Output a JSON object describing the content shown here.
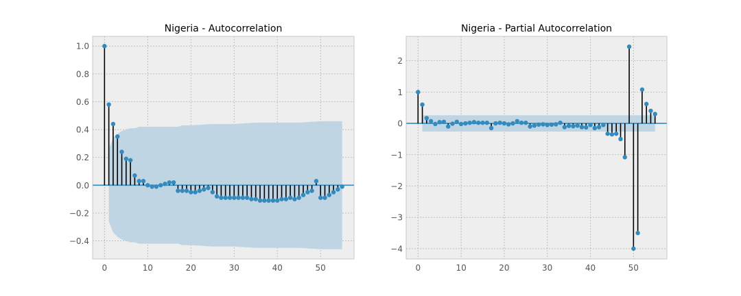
{
  "chart_data": [
    {
      "type": "stem",
      "title": "Nigeria - Autocorrelation",
      "xlabel": "",
      "ylabel": "",
      "xlim": [
        -2.75,
        57.75
      ],
      "ylim": [
        -0.53,
        1.07
      ],
      "xticks": [
        0,
        10,
        20,
        30,
        40,
        50
      ],
      "xtick_labels": [
        "0",
        "10",
        "20",
        "30",
        "40",
        "50"
      ],
      "yticks": [
        -0.4,
        -0.2,
        0.0,
        0.2,
        0.4,
        0.6,
        0.8,
        1.0
      ],
      "ytick_labels": [
        "−0.4",
        "−0.2",
        "0.0",
        "0.2",
        "0.4",
        "0.6",
        "0.8",
        "1.0"
      ],
      "grid": true,
      "colors": {
        "marker": "#348abd",
        "stem": "#000000",
        "baseline": "#348abd",
        "band": "#bcd3e2",
        "axes_bg": "#eeeeee",
        "grid": "#b2b2b2"
      },
      "x": [
        0,
        1,
        2,
        3,
        4,
        5,
        6,
        7,
        8,
        9,
        10,
        11,
        12,
        13,
        14,
        15,
        16,
        17,
        18,
        19,
        20,
        21,
        22,
        23,
        24,
        25,
        26,
        27,
        28,
        29,
        30,
        31,
        32,
        33,
        34,
        35,
        36,
        37,
        38,
        39,
        40,
        41,
        42,
        43,
        44,
        45,
        46,
        47,
        48,
        49,
        50,
        51,
        52,
        53,
        54,
        55
      ],
      "values": [
        1.0,
        0.58,
        0.44,
        0.35,
        0.24,
        0.19,
        0.18,
        0.07,
        0.03,
        0.03,
        0.0,
        -0.01,
        -0.01,
        0.0,
        0.01,
        0.02,
        0.02,
        -0.04,
        -0.04,
        -0.04,
        -0.05,
        -0.05,
        -0.04,
        -0.03,
        -0.02,
        -0.05,
        -0.08,
        -0.09,
        -0.09,
        -0.09,
        -0.09,
        -0.09,
        -0.09,
        -0.09,
        -0.1,
        -0.1,
        -0.11,
        -0.11,
        -0.11,
        -0.11,
        -0.11,
        -0.1,
        -0.1,
        -0.09,
        -0.1,
        -0.09,
        -0.07,
        -0.05,
        -0.04,
        0.03,
        -0.09,
        -0.09,
        -0.07,
        -0.05,
        -0.03,
        -0.01
      ],
      "confidence_band": {
        "x": [
          1,
          2,
          3,
          4,
          5,
          6,
          7,
          8,
          9,
          10,
          11,
          12,
          13,
          14,
          15,
          16,
          17,
          18,
          19,
          20,
          25,
          30,
          35,
          40,
          45,
          50,
          55
        ],
        "upper": [
          0.26,
          0.34,
          0.37,
          0.39,
          0.4,
          0.41,
          0.41,
          0.42,
          0.42,
          0.42,
          0.42,
          0.42,
          0.42,
          0.42,
          0.42,
          0.42,
          0.42,
          0.43,
          0.43,
          0.43,
          0.44,
          0.44,
          0.45,
          0.45,
          0.45,
          0.46,
          0.46
        ]
      }
    },
    {
      "type": "stem",
      "title": "Nigeria - Partial Autocorrelation",
      "xlabel": "",
      "ylabel": "",
      "xlim": [
        -2.75,
        57.75
      ],
      "ylim": [
        -4.33,
        2.78
      ],
      "xticks": [
        0,
        10,
        20,
        30,
        40,
        50
      ],
      "xtick_labels": [
        "0",
        "10",
        "20",
        "30",
        "40",
        "50"
      ],
      "yticks": [
        -4,
        -3,
        -2,
        -1,
        0,
        1,
        2
      ],
      "ytick_labels": [
        "−4",
        "−3",
        "−2",
        "−1",
        "0",
        "1",
        "2"
      ],
      "grid": true,
      "colors": {
        "marker": "#348abd",
        "stem": "#000000",
        "baseline": "#348abd",
        "band": "#bcd3e2",
        "axes_bg": "#eeeeee",
        "grid": "#b2b2b2"
      },
      "x": [
        0,
        1,
        2,
        3,
        4,
        5,
        6,
        7,
        8,
        9,
        10,
        11,
        12,
        13,
        14,
        15,
        16,
        17,
        18,
        19,
        20,
        21,
        22,
        23,
        24,
        25,
        26,
        27,
        28,
        29,
        30,
        31,
        32,
        33,
        34,
        35,
        36,
        37,
        38,
        39,
        40,
        41,
        42,
        43,
        44,
        45,
        46,
        47,
        48,
        49,
        50,
        51,
        52,
        53,
        54,
        55
      ],
      "values": [
        1.0,
        0.6,
        0.17,
        0.07,
        -0.02,
        0.04,
        0.05,
        -0.1,
        -0.01,
        0.05,
        -0.02,
        0.0,
        0.02,
        0.04,
        0.02,
        0.02,
        0.02,
        -0.15,
        0.0,
        0.02,
        0.0,
        -0.03,
        0.0,
        0.07,
        0.02,
        0.02,
        -0.1,
        -0.07,
        -0.04,
        -0.03,
        -0.05,
        -0.04,
        -0.03,
        0.02,
        -0.12,
        -0.08,
        -0.09,
        -0.07,
        -0.12,
        -0.13,
        -0.05,
        -0.15,
        -0.12,
        -0.05,
        -0.33,
        -0.35,
        -0.33,
        -0.5,
        -1.08,
        2.45,
        -4.0,
        -3.5,
        1.08,
        0.62,
        0.4,
        0.3
      ],
      "confidence_band": {
        "x": [
          1,
          55
        ],
        "upper": [
          0.26,
          0.26
        ]
      }
    }
  ]
}
